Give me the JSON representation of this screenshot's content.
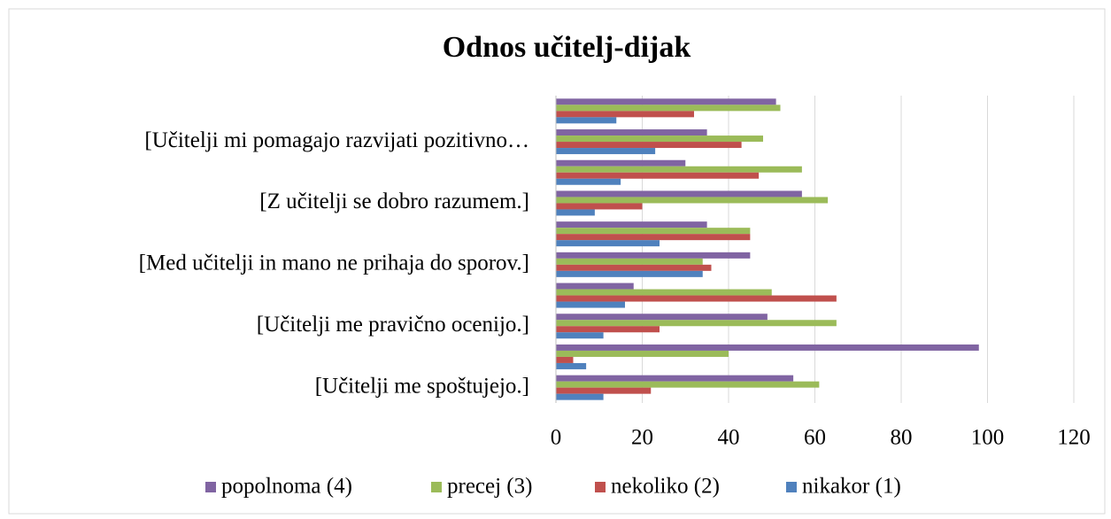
{
  "chart_data": {
    "type": "barh",
    "title": "Odnos učitelj-dijak",
    "categories": [
      "[Učitelji me spoštujejo.]",
      null,
      "[Učitelji me pravično ocenijo.]",
      null,
      "[Med učitelji in mano ne prihaja do sporov.]",
      null,
      "[Z učitelji se dobro razumem.]",
      null,
      "[Učitelji mi pomagajo razvijati pozitivno…",
      null
    ],
    "series": [
      {
        "name": "popolnoma (4)",
        "color": "#8064a2",
        "values": [
          55,
          98,
          49,
          18,
          45,
          35,
          57,
          30,
          35,
          51
        ]
      },
      {
        "name": "precej (3)",
        "color": "#9bbb59",
        "values": [
          61,
          40,
          65,
          50,
          34,
          45,
          63,
          57,
          48,
          52
        ]
      },
      {
        "name": "nekoliko (2)",
        "color": "#c0504d",
        "values": [
          22,
          4,
          24,
          65,
          36,
          45,
          20,
          47,
          43,
          32
        ]
      },
      {
        "name": "nikakor (1)",
        "color": "#4f81bd",
        "values": [
          11,
          7,
          11,
          16,
          34,
          24,
          9,
          15,
          23,
          14
        ]
      }
    ],
    "xlim": [
      0,
      120
    ],
    "xticks": [
      0,
      20,
      40,
      60,
      80,
      100,
      120
    ],
    "grid": true,
    "legend": "bottom"
  }
}
